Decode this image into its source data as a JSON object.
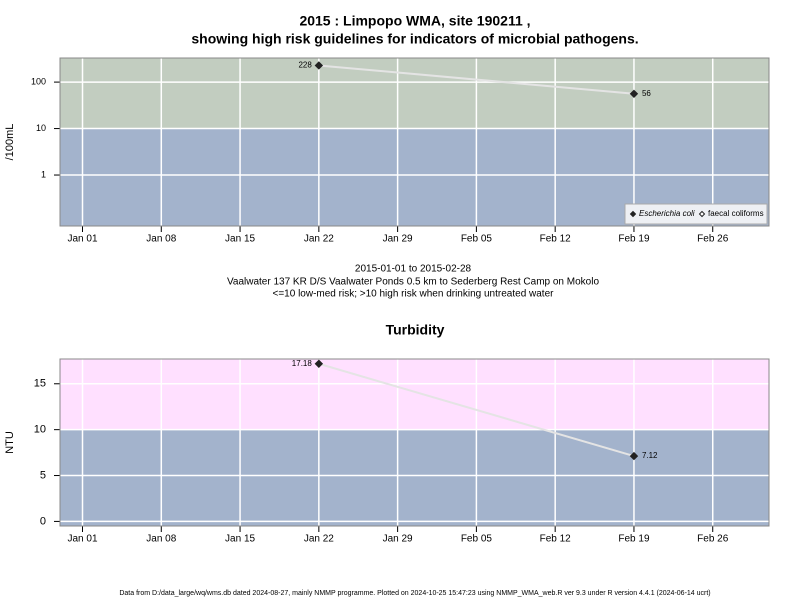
{
  "chart_data": [
    {
      "type": "line",
      "title": "2015 : Limpopo WMA, site 190211 ,",
      "subtitle": "showing high risk guidelines for indicators of microbial pathogens.",
      "y_label": "/100mL",
      "log_y": true,
      "x": [
        "2015-01-22",
        "2015-02-19"
      ],
      "series": [
        {
          "name": "Escherichia coli",
          "color": "#222222",
          "marker": "diamond-filled",
          "values": [
            228,
            56
          ]
        },
        {
          "name": "faecal coliforms",
          "color": "#222222",
          "marker": "diamond-open",
          "values": [
            null,
            null
          ]
        }
      ],
      "line_color": "#e4e4e4",
      "xlim": [
        "2014-12-30",
        "2015-03-03"
      ],
      "xticks": [
        {
          "value": "2015-01-01",
          "label": "Jan 01"
        },
        {
          "value": "2015-01-08",
          "label": "Jan 08"
        },
        {
          "value": "2015-01-15",
          "label": "Jan 15"
        },
        {
          "value": "2015-01-22",
          "label": "Jan 22"
        },
        {
          "value": "2015-01-29",
          "label": "Jan 29"
        },
        {
          "value": "2015-02-05",
          "label": "Feb 05"
        },
        {
          "value": "2015-02-12",
          "label": "Feb 12"
        },
        {
          "value": "2015-02-19",
          "label": "Feb 19"
        },
        {
          "value": "2015-02-26",
          "label": "Feb 26"
        }
      ],
      "ylim": [
        0.08,
        330
      ],
      "yticks": [
        1,
        10,
        100
      ],
      "threshold": 10,
      "above_color": "#c2cdc0",
      "below_color": "#a3b3cc",
      "grid": true,
      "legend": "bottom-right"
    },
    {
      "type": "line",
      "title": "Turbidity",
      "y_label": "NTU",
      "log_y": false,
      "x": [
        "2015-01-22",
        "2015-02-19"
      ],
      "series": [
        {
          "name": "Turbidity",
          "color": "#222222",
          "marker": "diamond-filled",
          "values": [
            17.18,
            7.12
          ]
        }
      ],
      "line_color": "#e4e4e4",
      "xlim": [
        "2014-12-30",
        "2015-03-03"
      ],
      "xticks": [
        {
          "value": "2015-01-01",
          "label": "Jan 01"
        },
        {
          "value": "2015-01-08",
          "label": "Jan 08"
        },
        {
          "value": "2015-01-15",
          "label": "Jan 15"
        },
        {
          "value": "2015-01-22",
          "label": "Jan 22"
        },
        {
          "value": "2015-01-29",
          "label": "Jan 29"
        },
        {
          "value": "2015-02-05",
          "label": "Feb 05"
        },
        {
          "value": "2015-02-12",
          "label": "Feb 12"
        },
        {
          "value": "2015-02-19",
          "label": "Feb 19"
        },
        {
          "value": "2015-02-26",
          "label": "Feb 26"
        }
      ],
      "ylim": [
        -0.5,
        17.7
      ],
      "yticks": [
        0,
        5,
        10,
        15
      ],
      "threshold": 10,
      "above_color": "#ffe0ff",
      "below_color": "#a3b3cc",
      "grid": true
    }
  ],
  "caption": [
    "2015-01-01 to 2015-02-28",
    "Vaalwater 137 KR D/S Vaalwater Ponds 0.5 km to Sederberg Rest Camp on Mokolo",
    "<=10 low-med risk; >10 high risk when drinking untreated water"
  ],
  "footer": "Data from D:/data_large/wq/wms.db dated 2024-08-27, mainly NMMP programme. Plotted on 2024-10-25 15:47:23 using NMMP_WMA_web.R ver 9.3 under R version 4.4.1 (2024-06-14 ucrt)"
}
